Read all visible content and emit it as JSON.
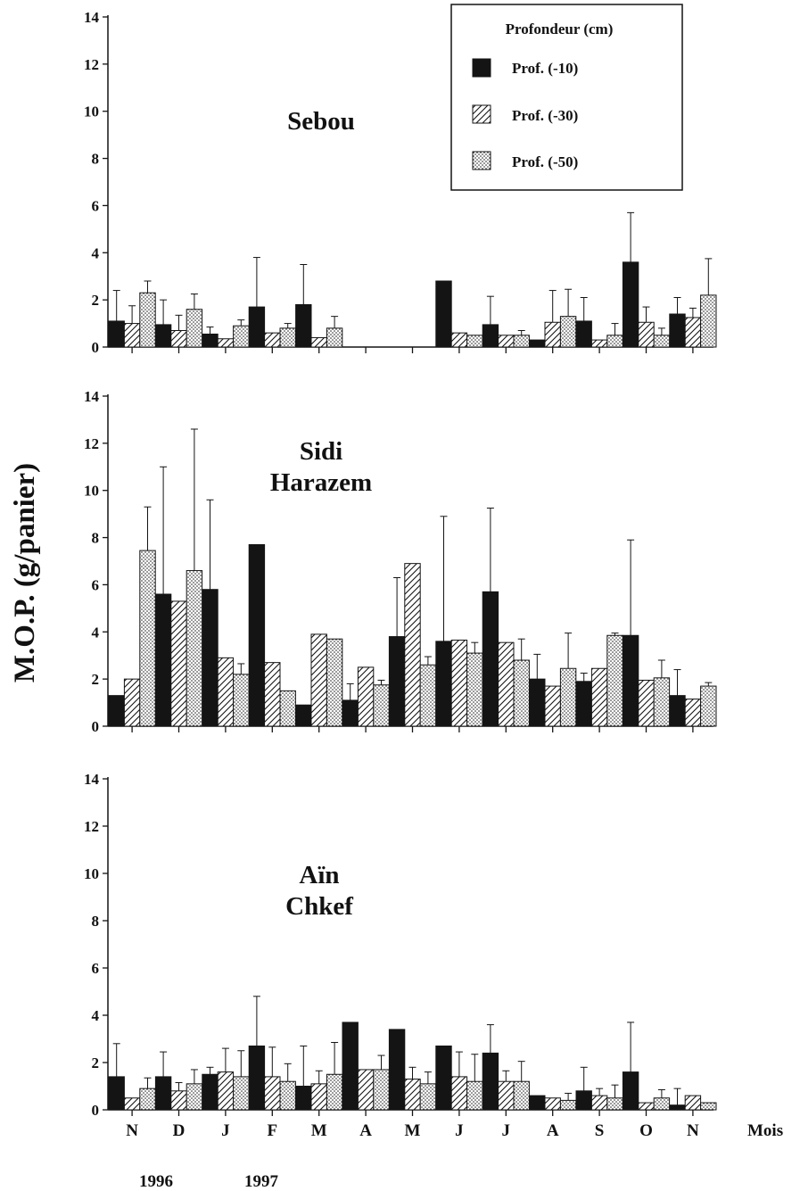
{
  "chart_data": {
    "type": "bar",
    "ylabel": "M.O.P. (g/panier)",
    "xlabel": "Mois",
    "categories": [
      "N",
      "D",
      "J",
      "F",
      "M",
      "A",
      "M",
      "J",
      "J",
      "A",
      "S",
      "O",
      "N"
    ],
    "years": [
      "1996",
      "1997"
    ],
    "ylim": [
      0,
      14
    ],
    "yticks": [
      "0",
      "2",
      "4",
      "6",
      "8",
      "10",
      "12",
      "14"
    ],
    "legend": {
      "title": "Profondeur (cm)",
      "placement": "top-right",
      "entries": [
        {
          "label": "Prof. (-10)",
          "pattern": "solid",
          "color": "#141414"
        },
        {
          "label": "Prof. (-30)",
          "pattern": "hatch",
          "color": "#141414"
        },
        {
          "label": "Prof. (-50)",
          "pattern": "dots",
          "color": "#141414"
        }
      ]
    },
    "panels": [
      {
        "title": [
          "Sebou"
        ],
        "series": [
          {
            "values": [
              1.1,
              0.95,
              0.55,
              1.7,
              1.8,
              null,
              null,
              2.8,
              0.95,
              0.3,
              1.1,
              3.6,
              1.4
            ],
            "errors": [
              1.3,
              1.05,
              0.3,
              2.1,
              1.7,
              null,
              null,
              0,
              1.2,
              0,
              1.0,
              2.1,
              0.7
            ]
          },
          {
            "values": [
              1.0,
              0.7,
              0.35,
              0.6,
              0.4,
              null,
              null,
              0.6,
              0.5,
              1.05,
              0.3,
              1.05,
              1.25
            ],
            "errors": [
              0.75,
              0.65,
              0,
              0,
              0,
              null,
              null,
              0,
              0,
              1.35,
              0,
              0.65,
              0.4
            ]
          },
          {
            "values": [
              2.3,
              1.6,
              0.9,
              0.8,
              0.8,
              null,
              null,
              0.5,
              0.5,
              1.3,
              0.5,
              0.5,
              2.2
            ],
            "errors": [
              0.5,
              0.65,
              0.25,
              0.2,
              0.5,
              null,
              null,
              0,
              0.2,
              1.15,
              0.5,
              0.3,
              1.55
            ]
          }
        ]
      },
      {
        "title": [
          "Sidi",
          "Harazem"
        ],
        "series": [
          {
            "values": [
              1.3,
              5.6,
              5.8,
              7.7,
              0.9,
              1.1,
              3.8,
              3.6,
              5.7,
              2.0,
              1.9,
              3.85,
              1.3
            ],
            "errors": [
              0,
              5.4,
              3.8,
              0,
              0,
              0.7,
              2.5,
              5.3,
              3.55,
              1.05,
              0.35,
              4.05,
              1.1
            ]
          },
          {
            "values": [
              2.0,
              5.3,
              2.9,
              2.7,
              3.9,
              2.5,
              6.9,
              3.65,
              3.55,
              1.7,
              2.45,
              1.95,
              1.15
            ]
          },
          {
            "values": [
              7.45,
              6.6,
              2.2,
              1.5,
              3.7,
              1.75,
              2.6,
              3.1,
              2.8,
              2.45,
              3.85,
              2.05,
              1.7
            ],
            "errors": [
              1.85,
              6.0,
              0.45,
              0,
              0,
              0.2,
              0.35,
              0.45,
              0.9,
              1.5,
              0.1,
              0.75,
              0.15
            ]
          }
        ]
      },
      {
        "title": [
          "Aïn",
          "Chkef"
        ],
        "series": [
          {
            "values": [
              1.4,
              1.4,
              1.5,
              2.7,
              1.0,
              3.7,
              3.4,
              2.7,
              2.4,
              0.6,
              0.8,
              1.6,
              0.2
            ],
            "errors": [
              1.4,
              1.05,
              0.3,
              2.1,
              1.7,
              0,
              0,
              0,
              1.2,
              0,
              1.0,
              2.1,
              0.7
            ]
          },
          {
            "values": [
              0.5,
              0.8,
              1.6,
              1.4,
              1.1,
              1.7,
              1.3,
              1.4,
              1.2,
              0.5,
              0.6,
              0.3,
              0.6
            ],
            "errors": [
              0,
              0.35,
              1.0,
              1.25,
              0.55,
              0,
              0.5,
              1.05,
              0.45,
              0,
              0.3,
              0,
              0
            ]
          },
          {
            "values": [
              0.9,
              1.1,
              1.4,
              1.2,
              1.5,
              1.7,
              1.1,
              1.2,
              1.2,
              0.4,
              0.5,
              0.5,
              0.3
            ],
            "errors": [
              0.45,
              0.6,
              1.1,
              0.75,
              1.35,
              0.6,
              0.5,
              1.15,
              0.85,
              0.3,
              0.55,
              0.35,
              0
            ]
          }
        ]
      }
    ]
  }
}
